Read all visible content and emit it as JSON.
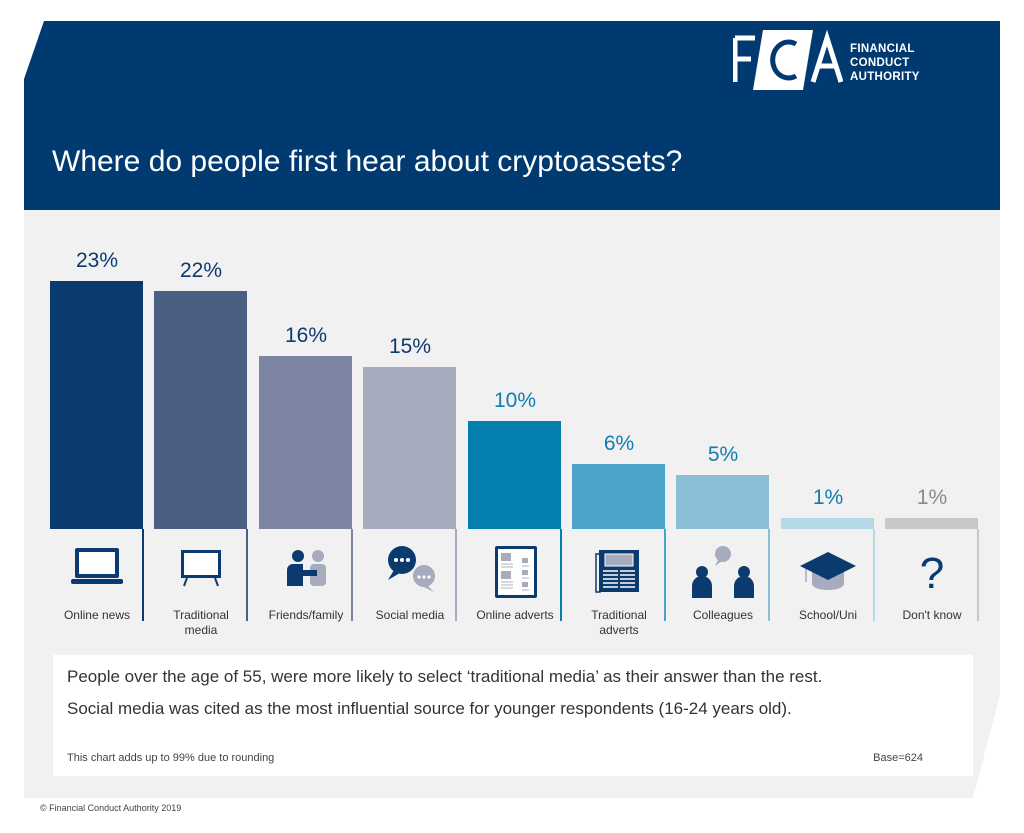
{
  "header": {
    "title": "Where do people first hear about cryptoassets?",
    "logo_text": [
      "FINANCIAL",
      "CONDUCT",
      "AUTHORITY"
    ],
    "logo_mark": "FCA"
  },
  "chart_data": {
    "type": "bar",
    "categories": [
      "Online news",
      "Traditional media",
      "Friends/family",
      "Social media",
      "Online adverts",
      "Traditional adverts",
      "Colleagues",
      "School/Uni",
      "Don't know"
    ],
    "values": [
      23,
      22,
      16,
      15,
      10,
      6,
      5,
      1,
      1
    ],
    "data_labels": [
      "23%",
      "22%",
      "16%",
      "15%",
      "10%",
      "6%",
      "5%",
      "1%",
      "1%"
    ],
    "colors": [
      "#0b3a6e",
      "#4b5f82",
      "#7b84a0",
      "#a7abbe",
      "#0380b0",
      "#4da2c9",
      "#8bbdd6",
      "#b6d9e7",
      "#c8c8c8"
    ],
    "label_colors": [
      "#0b3a6e",
      "#0b3a6e",
      "#0b3a6e",
      "#0b3a6e",
      "#0e7db0",
      "#0e7db0",
      "#0e7db0",
      "#0e7db0",
      "#8a8a8a"
    ],
    "icons": [
      "laptop-icon",
      "tv-icon",
      "friends-icon",
      "chat-bubbles-icon",
      "web-page-icon",
      "newspaper-icon",
      "colleagues-icon",
      "graduation-cap-icon",
      "question-mark-icon"
    ],
    "ylim": [
      0,
      23
    ],
    "grid": false
  },
  "note": {
    "line1": "People over the age of 55, were more likely to select ‘traditional media’ as their answer than the rest.",
    "line2": "Social media was cited as the most influential source for younger respondents (16-24 years old).",
    "footnote": "This chart adds up to 99% due to rounding",
    "base": "Base=624"
  },
  "copyright": "© Financial Conduct Authority 2019"
}
